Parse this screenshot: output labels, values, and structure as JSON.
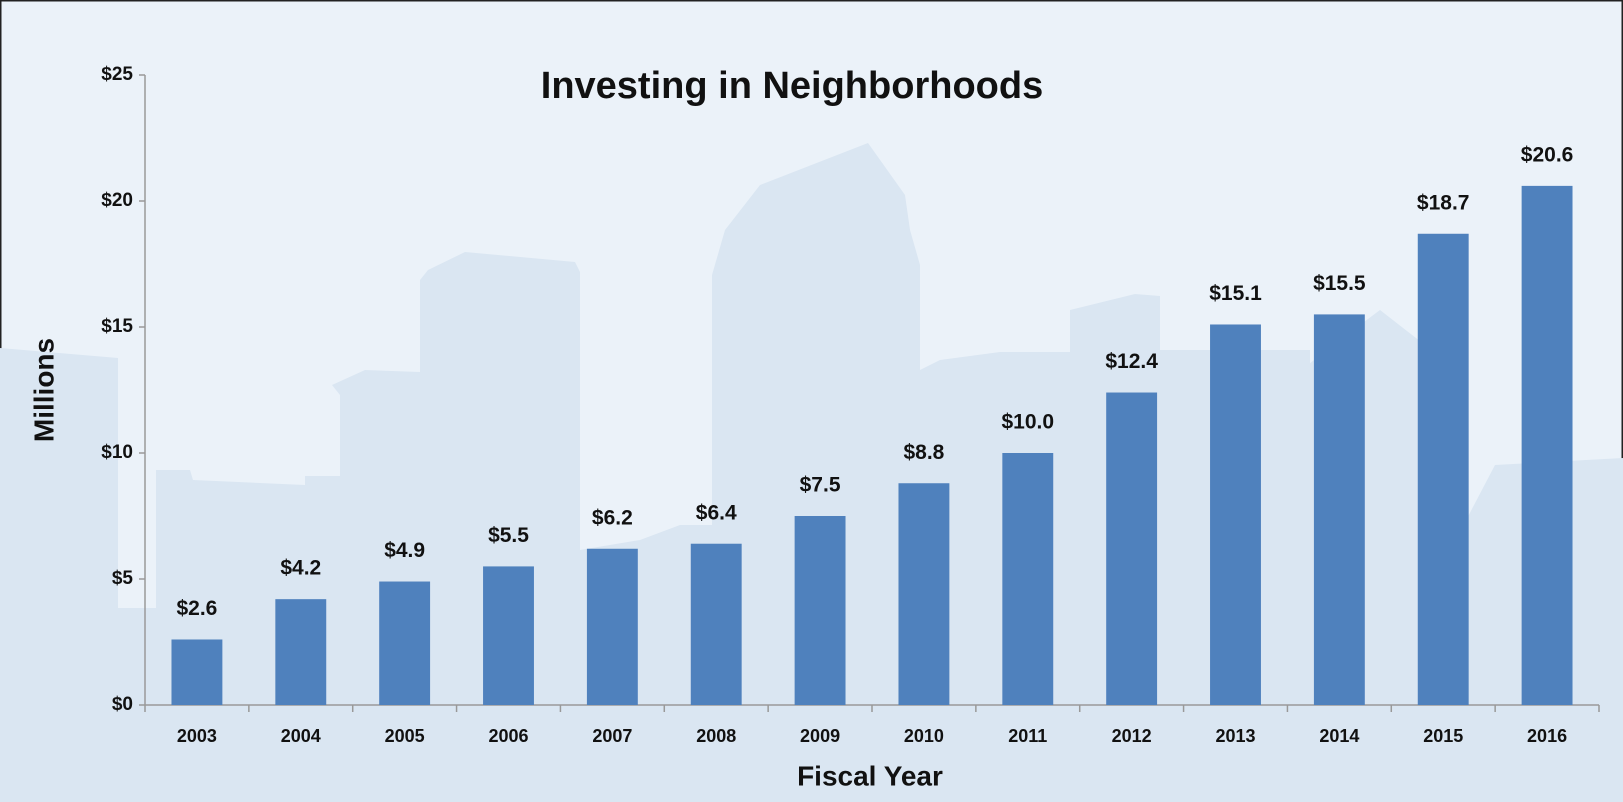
{
  "chart_data": {
    "type": "bar",
    "title": "Investing in Neighborhoods",
    "x_label": "Fiscal Year",
    "y_label": "Millions",
    "categories": [
      "2003",
      "2004",
      "2005",
      "2006",
      "2007",
      "2008",
      "2009",
      "2010",
      "2011",
      "2012",
      "2013",
      "2014",
      "2015",
      "2016"
    ],
    "values": [
      2.6,
      4.2,
      4.9,
      5.5,
      6.2,
      6.4,
      7.5,
      8.8,
      10.0,
      12.4,
      15.1,
      15.5,
      18.7,
      20.6
    ],
    "value_labels": [
      "$2.6",
      "$4.2",
      "$4.9",
      "$5.5",
      "$6.2",
      "$6.4",
      "$7.5",
      "$8.8",
      "$10.0",
      "$12.4",
      "$15.1",
      "$15.5",
      "$18.7",
      "$20.6"
    ],
    "color": "#4f81bd",
    "ylim": [
      0,
      25
    ],
    "yticks": [
      {
        "value": 0,
        "label": "$0"
      },
      {
        "value": 5,
        "label": "$5"
      },
      {
        "value": 10,
        "label": "$10"
      },
      {
        "value": 15,
        "label": "$15"
      },
      {
        "value": 20,
        "label": "$20"
      },
      {
        "value": 25,
        "label": "$25"
      }
    ]
  }
}
